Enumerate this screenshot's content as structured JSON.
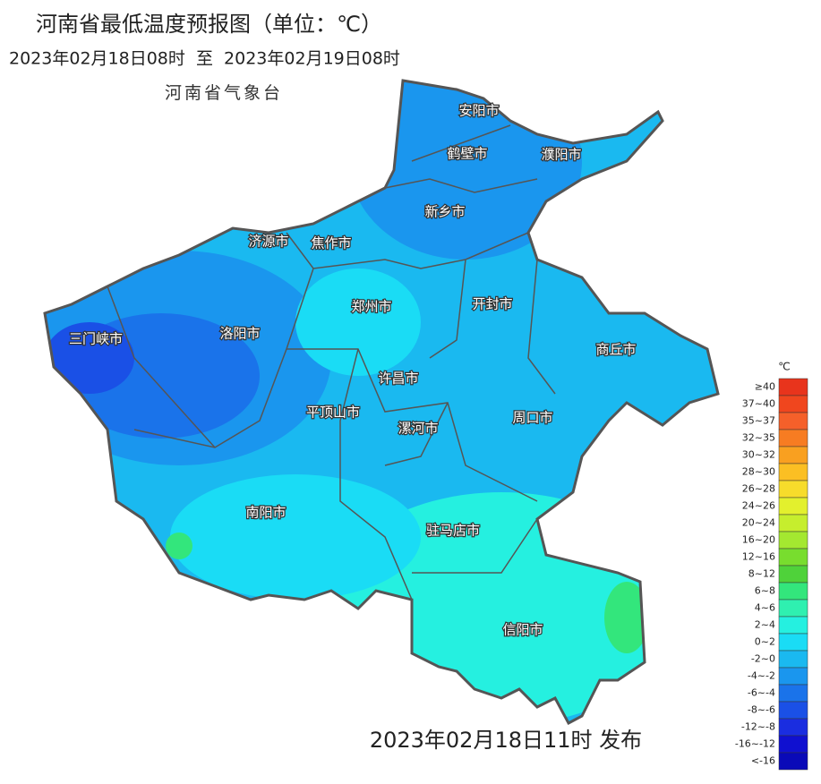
{
  "header": {
    "title": "河南省最低温度预报图（单位：℃）",
    "period": "2023年02月18日08时  至  2023年02月19日08时",
    "agency": "河南省气象台"
  },
  "cities": [
    "安阳市",
    "鹤壁市",
    "濮阳市",
    "新乡市",
    "济源市",
    "焦作市",
    "郑州市",
    "开封市",
    "商丘市",
    "三门峡市",
    "洛阳市",
    "许昌市",
    "平顶山市",
    "漯河市",
    "周口市",
    "南阳市",
    "驻马店市",
    "信阳市"
  ],
  "legend": {
    "unit": "℃",
    "items": [
      {
        "label": "≥40",
        "color": "#e8341c"
      },
      {
        "label": "37~40",
        "color": "#f0461e"
      },
      {
        "label": "35~37",
        "color": "#f5602a"
      },
      {
        "label": "32~35",
        "color": "#f77c22"
      },
      {
        "label": "30~32",
        "color": "#f9a020"
      },
      {
        "label": "28~30",
        "color": "#fbbf23"
      },
      {
        "label": "26~28",
        "color": "#f7dc2b"
      },
      {
        "label": "24~26",
        "color": "#e3f02d"
      },
      {
        "label": "20~24",
        "color": "#c6ee2d"
      },
      {
        "label": "16~20",
        "color": "#a4e830"
      },
      {
        "label": "12~16",
        "color": "#78dd2e"
      },
      {
        "label": "8~12",
        "color": "#4fd23a"
      },
      {
        "label": "6~8",
        "color": "#33e67c"
      },
      {
        "label": "4~6",
        "color": "#2ff0b0"
      },
      {
        "label": "2~4",
        "color": "#25f0e0"
      },
      {
        "label": "0~2",
        "color": "#1adcf5"
      },
      {
        "label": "-2~0",
        "color": "#1ab9f0"
      },
      {
        "label": "-4~-2",
        "color": "#1a96ee"
      },
      {
        "label": "-6~-4",
        "color": "#1a73ea"
      },
      {
        "label": "-8~-6",
        "color": "#1a50e6"
      },
      {
        "label": "-12~-8",
        "color": "#1a2de0"
      },
      {
        "label": "-16~-12",
        "color": "#1010d0"
      },
      {
        "label": "<-16",
        "color": "#0a0ab8"
      }
    ]
  },
  "footer": {
    "issued": "2023年02月18日11时 发布"
  }
}
